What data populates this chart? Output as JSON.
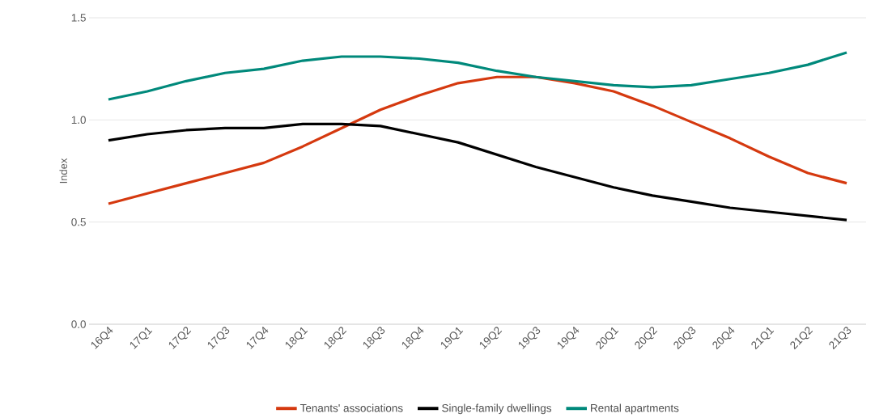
{
  "chart_data": {
    "type": "line",
    "ylabel": "Index",
    "categories": [
      "16Q4",
      "17Q1",
      "17Q2",
      "17Q3",
      "17Q4",
      "18Q1",
      "18Q2",
      "18Q3",
      "18Q4",
      "19Q1",
      "19Q2",
      "19Q3",
      "19Q4",
      "20Q1",
      "20Q2",
      "20Q3",
      "20Q4",
      "21Q1",
      "21Q2",
      "21Q3"
    ],
    "series": [
      {
        "name": "Tenants' associations",
        "color": "#d5390f",
        "values": [
          0.59,
          0.64,
          0.69,
          0.74,
          0.79,
          0.87,
          0.96,
          1.05,
          1.12,
          1.18,
          1.21,
          1.21,
          1.18,
          1.14,
          1.07,
          0.99,
          0.91,
          0.82,
          0.74,
          0.69
        ]
      },
      {
        "name": "Single-family dwellings",
        "color": "#000000",
        "values": [
          0.9,
          0.93,
          0.95,
          0.96,
          0.96,
          0.98,
          0.98,
          0.97,
          0.93,
          0.89,
          0.83,
          0.77,
          0.72,
          0.67,
          0.63,
          0.6,
          0.57,
          0.55,
          0.53,
          0.51
        ]
      },
      {
        "name": "Rental apartments",
        "color": "#00897b",
        "values": [
          1.1,
          1.14,
          1.19,
          1.23,
          1.25,
          1.29,
          1.31,
          1.31,
          1.3,
          1.28,
          1.24,
          1.21,
          1.19,
          1.17,
          1.16,
          1.17,
          1.2,
          1.23,
          1.27,
          1.33
        ]
      }
    ],
    "ylim": [
      0,
      1.5
    ],
    "yticks": [
      {
        "value": 0,
        "label": "0.0"
      },
      {
        "value": 0.5,
        "label": "0.5"
      },
      {
        "value": 1,
        "label": "1.0"
      },
      {
        "value": 1.5,
        "label": "1.5"
      }
    ],
    "grid": "y",
    "legend": "bottom",
    "marker": "none",
    "line_style": "solid"
  }
}
